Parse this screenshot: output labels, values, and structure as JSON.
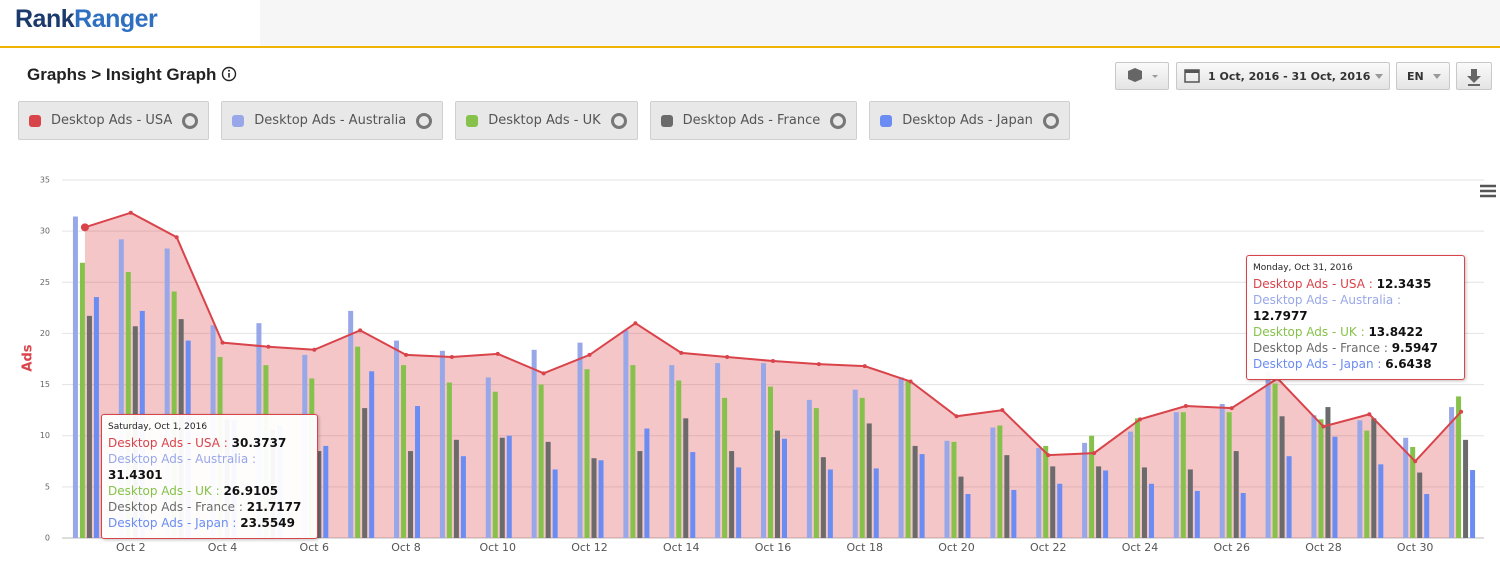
{
  "header": {
    "logo": [
      "Rank",
      "Ranger"
    ]
  },
  "breadcrumb": "Graphs > Insight Graph",
  "toolbar": {
    "date_range": "1 Oct, 2016 - 31 Oct, 2016",
    "language": "EN"
  },
  "chart_data": {
    "type": "bar",
    "y_label": "Ads",
    "categories": [
      null,
      "Oct 2",
      null,
      "Oct 4",
      null,
      "Oct 6",
      null,
      "Oct 8",
      null,
      "Oct 10",
      null,
      "Oct 12",
      null,
      "Oct 14",
      null,
      "Oct 16",
      null,
      "Oct 18",
      null,
      "Oct 20",
      null,
      "Oct 22",
      null,
      "Oct 24",
      null,
      "Oct 26",
      null,
      "Oct 28",
      null,
      "Oct 30",
      null
    ],
    "ylim": [
      0,
      35
    ],
    "yticks": [
      0,
      5,
      10,
      15,
      20,
      25,
      30,
      35
    ],
    "grid": true,
    "series": [
      {
        "name": "Desktop Ads - USA",
        "type": "area",
        "color": "#d9434a",
        "values": [
          30.3737,
          31.8,
          29.4,
          19.1,
          18.7,
          18.4,
          20.3,
          17.9,
          17.7,
          18.0,
          16.1,
          17.9,
          21.0,
          18.1,
          17.7,
          17.3,
          17.0,
          16.8,
          15.3,
          11.9,
          12.5,
          8.1,
          8.3,
          11.6,
          12.9,
          12.7,
          15.6,
          10.9,
          12.1,
          7.5,
          12.3435
        ]
      },
      {
        "name": "Desktop Ads - Australia",
        "color": "#98a7e8",
        "values": [
          31.4301,
          29.2,
          28.3,
          20.8,
          21.0,
          17.9,
          22.2,
          19.3,
          18.3,
          15.7,
          18.4,
          19.1,
          20.3,
          16.9,
          17.1,
          17.1,
          13.5,
          14.5,
          15.7,
          9.5,
          10.8,
          8.8,
          9.3,
          10.4,
          12.3,
          13.1,
          16.2,
          12.0,
          11.5,
          9.8,
          12.7977
        ]
      },
      {
        "name": "Desktop Ads - UK",
        "color": "#86c24b",
        "values": [
          26.9105,
          26.0,
          24.1,
          17.7,
          16.9,
          15.6,
          18.7,
          16.9,
          15.2,
          14.3,
          15.0,
          16.5,
          16.9,
          15.4,
          13.7,
          14.8,
          12.7,
          13.7,
          15.4,
          9.4,
          11.0,
          9.0,
          10.0,
          11.7,
          12.3,
          12.3,
          15.1,
          11.6,
          10.5,
          8.9,
          13.8422
        ]
      },
      {
        "name": "Desktop Ads - France",
        "color": "#6b6b6b",
        "values": [
          21.7177,
          20.7,
          21.4,
          11.6,
          10.6,
          8.5,
          12.7,
          8.5,
          9.6,
          9.8,
          9.4,
          7.8,
          8.5,
          11.7,
          8.5,
          10.5,
          7.9,
          11.2,
          9.0,
          6.0,
          8.1,
          7.0,
          7.0,
          6.9,
          6.7,
          8.5,
          11.9,
          12.8,
          11.7,
          6.4,
          9.5947
        ]
      },
      {
        "name": "Desktop Ads - Japan",
        "color": "#6b8cf3",
        "values": [
          23.5549,
          22.2,
          19.3,
          11.5,
          11.0,
          9.0,
          16.3,
          12.9,
          8.0,
          10.0,
          6.7,
          7.6,
          10.7,
          8.4,
          6.9,
          9.7,
          6.7,
          6.8,
          8.2,
          4.3,
          4.7,
          5.3,
          6.6,
          5.3,
          4.6,
          4.4,
          8.0,
          9.9,
          7.2,
          4.3,
          6.6438
        ]
      }
    ],
    "tooltips": [
      "Saturday, Oct 1, 2016",
      "Monday, Oct 31, 2016"
    ]
  }
}
